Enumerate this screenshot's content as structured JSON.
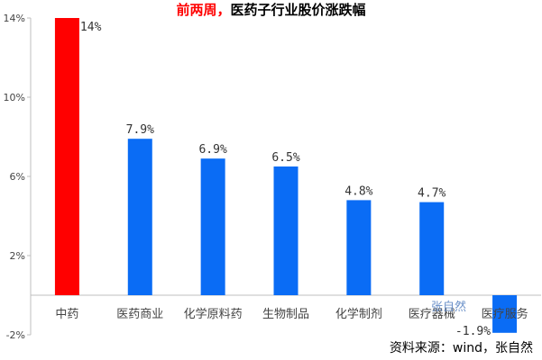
{
  "title": {
    "prefix": "前两周，",
    "main": "医药子行业股价涨跌幅"
  },
  "source": "资料来源：wind，张自然",
  "watermark": "张自然",
  "colors": {
    "highlight": "#ff0000",
    "bar": "#0a6cf5",
    "axis": "#bfbfbf"
  },
  "chart_data": {
    "type": "bar",
    "categories": [
      "中药",
      "医药商业",
      "化学原料药",
      "生物制品",
      "化学制剂",
      "医疗器械",
      "医疗服务"
    ],
    "values": [
      14,
      7.9,
      6.9,
      6.5,
      4.8,
      4.7,
      -1.9
    ],
    "data_labels": [
      "14%",
      "7.9%",
      "6.9%",
      "6.5%",
      "4.8%",
      "4.7%",
      "-1.9%"
    ],
    "highlight_index": 0,
    "ylim": [
      -2,
      14
    ],
    "yticks": [
      -2,
      2,
      6,
      10,
      14
    ],
    "ytick_labels": [
      "-2%",
      "2%",
      "6%",
      "10%",
      "14%"
    ],
    "grid": false,
    "xlabel": "",
    "ylabel": ""
  }
}
